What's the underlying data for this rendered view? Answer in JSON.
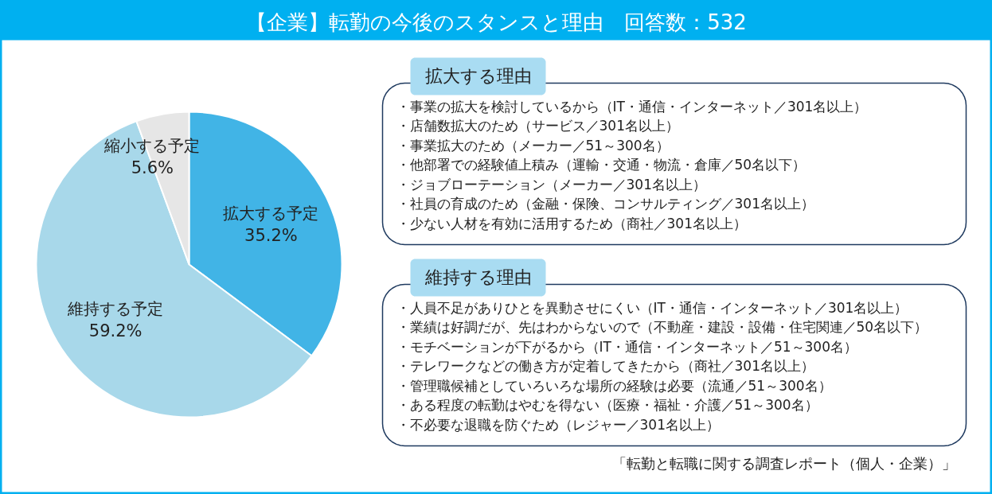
{
  "chart_data": [
    {
      "type": "pie",
      "title": "【企業】転勤の今後のスタンスと理由　回答数：532",
      "categories": [
        "拡大する予定",
        "維持する予定",
        "縮小する予定"
      ],
      "values": [
        35.2,
        59.2,
        5.6
      ],
      "colors": [
        "#41b4e6",
        "#a8d8ea",
        "#e6e6e6"
      ],
      "value_labels": [
        "35.2%",
        "59.2%",
        "5.6%"
      ],
      "annotations": [
        "「転勤と転職に関する調査レポート（個人・企業）」"
      ]
    },
    {
      "type": "other",
      "title": "拡大する理由",
      "annotations": [
        "・事業の拡大を検討しているから（IT・通信・インターネット／301名以上）",
        "・店舗数拡大のため（サービス／301名以上）",
        "・事業拡大のため（メーカー／51～300名）",
        "・他部署での経験値上積み（運輸・交通・物流・倉庫／50名以下）",
        "・ジョブローテーション（メーカー／301名以上）",
        "・社員の育成のため（金融・保険、コンサルティング／301名以上）",
        "・少ない人材を有効に活用するため（商社／301名以上）"
      ]
    },
    {
      "type": "other",
      "title": "維持する理由",
      "annotations": [
        "・人員不足がありひとを異動させにくい（IT・通信・インターネット／301名以上）",
        "・業績は好調だが、先はわからないので（不動産・建設・設備・住宅関連／50名以下）",
        "・モチベーションが下がるから（IT・通信・インターネット／51～300名）",
        "・テレワークなどの働き方が定着してきたから（商社／301名以上）",
        "・管理職候補としていろいろな場所の経験は必要（流通／51～300名）",
        "・ある程度の転勤はやむを得ない（医療・福祉・介護／51～300名）",
        "・不必要な退職を防ぐため（レジャー／301名以上）"
      ]
    }
  ]
}
